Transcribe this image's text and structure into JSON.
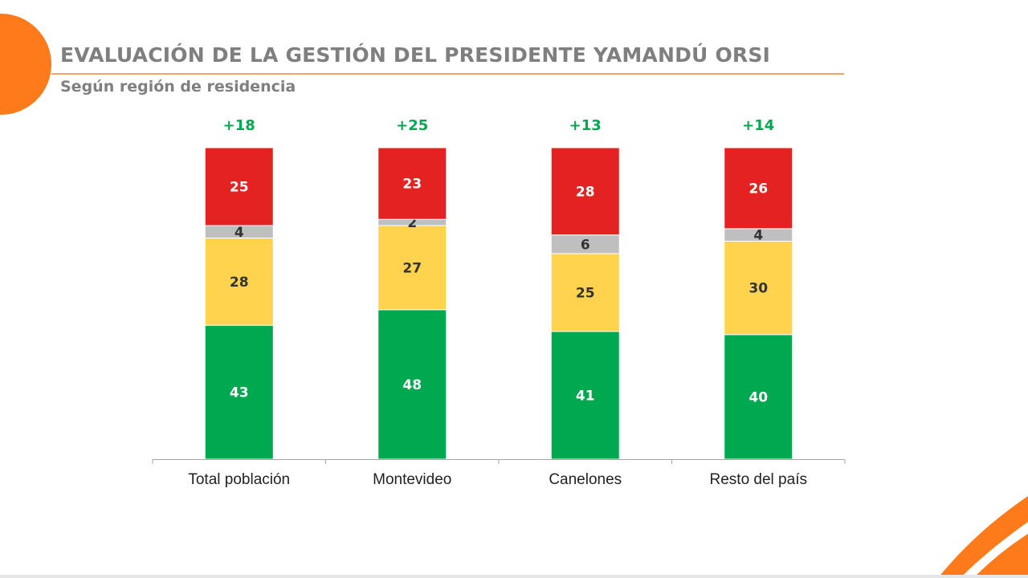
{
  "header": {
    "title": "EVALUACIÓN DE LA GESTIÓN DEL PRESIDENTE YAMANDÚ ORSI",
    "subtitle": "Según región de residencia"
  },
  "colors": {
    "accent": "#ff7a1a",
    "title_text": "#7f7f7f",
    "aprueba": "#00a84f",
    "ni_ni": "#ffd34d",
    "ns_nc": "#bfbfbf",
    "desaprueba": "#e52222",
    "net_positive": "#00a84f"
  },
  "chart_data": {
    "type": "bar",
    "stacked": true,
    "categories": [
      "Total población",
      "Montevideo",
      "Canelones",
      "Resto del país"
    ],
    "series": [
      {
        "color": "#00a84f",
        "label_color": "#ffffff",
        "values": [
          43,
          48,
          41,
          40
        ]
      },
      {
        "color": "#ffd34d",
        "label_color": "#333333",
        "values": [
          28,
          27,
          25,
          30
        ]
      },
      {
        "color": "#bfbfbf",
        "label_color": "#333333",
        "values": [
          4,
          2,
          6,
          4
        ]
      },
      {
        "color": "#e52222",
        "label_color": "#ffffff",
        "values": [
          25,
          23,
          28,
          26
        ]
      }
    ],
    "net_labels": [
      "+18",
      "+25",
      "+13",
      "+14"
    ],
    "ylim": [
      0,
      100
    ],
    "grid": false,
    "legend": "none",
    "xlabel": "",
    "ylabel": ""
  }
}
